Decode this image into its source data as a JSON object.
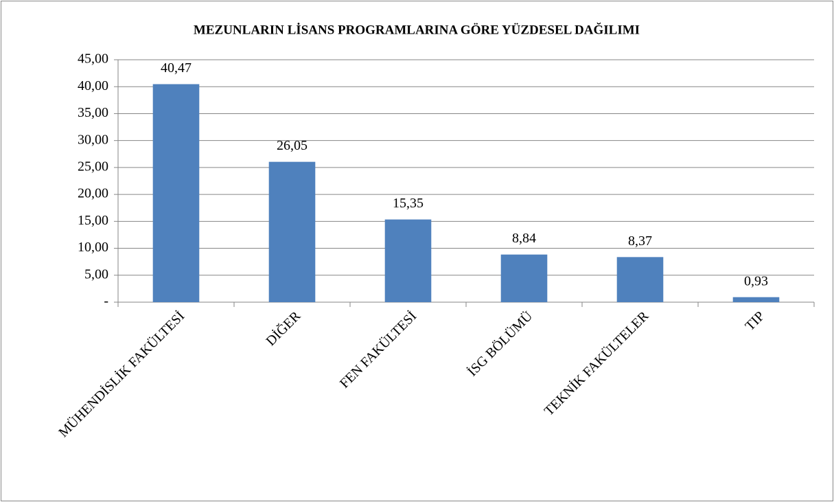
{
  "chart_data": {
    "type": "bar",
    "title": "MEZUNLARIN LİSANS PROGRAMLARINA GÖRE YÜZDESEL DAĞILIMI",
    "categories": [
      "MÜHENDİSLİK FAKÜLTESİ",
      "DİĞER",
      "FEN FAKÜLTESİ",
      "İSG BÖLÜMÜ",
      "TEKNİK FAKÜLTELER",
      "TIP"
    ],
    "values": [
      40.47,
      26.05,
      15.35,
      8.84,
      8.37,
      0.93
    ],
    "value_labels": [
      "40,47",
      "26,05",
      "15,35",
      "8,84",
      "8,37",
      "0,93"
    ],
    "color": "#4f81bd",
    "ylim": [
      0,
      45
    ],
    "yticks": [
      {
        "value": 0,
        "label": "-"
      },
      {
        "value": 5,
        "label": "5,00"
      },
      {
        "value": 10,
        "label": "10,00"
      },
      {
        "value": 15,
        "label": "15,00"
      },
      {
        "value": 20,
        "label": "20,00"
      },
      {
        "value": 25,
        "label": "25,00"
      },
      {
        "value": 30,
        "label": "30,00"
      },
      {
        "value": 35,
        "label": "35,00"
      },
      {
        "value": 40,
        "label": "40,00"
      },
      {
        "value": 45,
        "label": "45,00"
      }
    ],
    "grid": true
  }
}
